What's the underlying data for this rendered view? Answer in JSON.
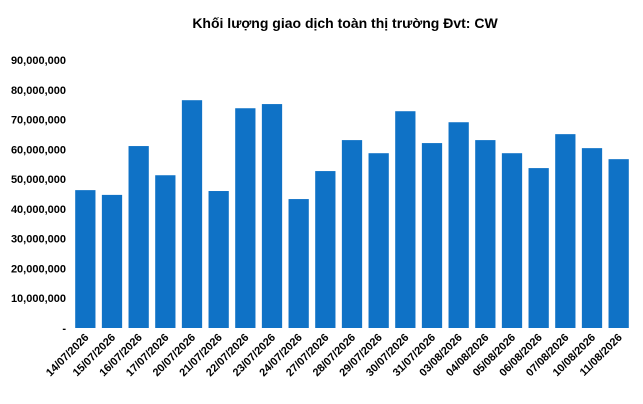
{
  "chart_data": {
    "type": "bar",
    "title": "Khối lượng giao dịch toàn thị trường Đvt: CW",
    "categories": [
      "14/07/2026",
      "15/07/2026",
      "16/07/2026",
      "17/07/2026",
      "20/07/2026",
      "21/07/2026",
      "22/07/2026",
      "23/07/2026",
      "24/07/2026",
      "27/07/2026",
      "28/07/2026",
      "29/07/2026",
      "30/07/2026",
      "31/07/2026",
      "03/08/2026",
      "04/08/2026",
      "05/08/2026",
      "06/08/2026",
      "07/08/2026",
      "10/08/2026",
      "11/08/2026"
    ],
    "values": [
      46300000,
      44700000,
      61100000,
      51300000,
      76500000,
      46000000,
      73800000,
      75200000,
      43300000,
      52700000,
      63100000,
      58700000,
      72800000,
      62100000,
      69100000,
      63100000,
      58700000,
      53700000,
      65100000,
      60400000,
      56700000
    ],
    "color": "#0f72c6",
    "ylim": [
      0,
      90000000
    ],
    "yticks": [
      {
        "value": 0,
        "label": "-"
      },
      {
        "value": 10000000,
        "label": "10,000,000"
      },
      {
        "value": 20000000,
        "label": "20,000,000"
      },
      {
        "value": 30000000,
        "label": "30,000,000"
      },
      {
        "value": 40000000,
        "label": "40,000,000"
      },
      {
        "value": 50000000,
        "label": "50,000,000"
      },
      {
        "value": 60000000,
        "label": "60,000,000"
      },
      {
        "value": 70000000,
        "label": "70,000,000"
      },
      {
        "value": 80000000,
        "label": "80,000,000"
      },
      {
        "value": 90000000,
        "label": "90,000,000"
      }
    ],
    "grid": false
  }
}
